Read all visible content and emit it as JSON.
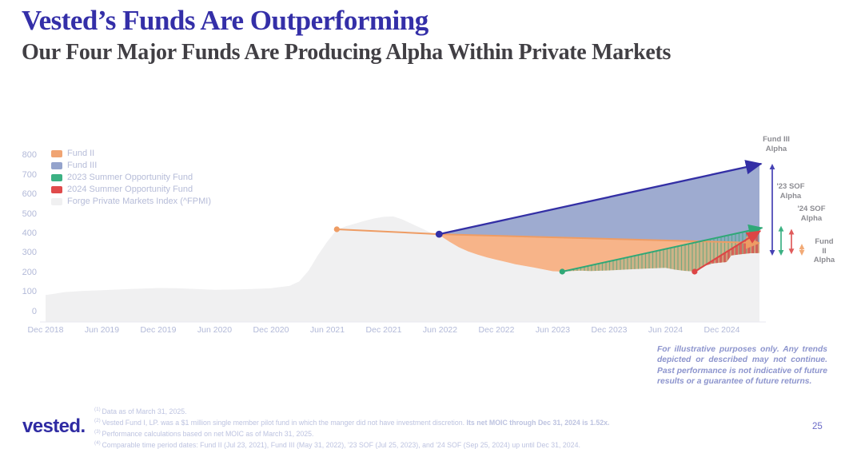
{
  "header": {
    "title": "Vested’s Funds Are Outperforming",
    "subtitle": "Our Four Major Funds Are Producing Alpha Within Private Markets"
  },
  "colors": {
    "title": "#342fa8",
    "subtitle": "#413f44",
    "fund2_orange": "#f0a473",
    "fund3_blue_fill": "#96a4cc",
    "fund3_navy_line": "#332fa5",
    "sof23_green": "#3cb183",
    "sof24_red": "#e04b4b",
    "fpmi_gray": "#f0f0f1",
    "axis_text": "#b2b9d8",
    "alpha_label_gray": "#8c8c92"
  },
  "legend": {
    "items": [
      {
        "label": "Fund II",
        "color": "#f0a473"
      },
      {
        "label": "Fund III",
        "color": "#94a3cc"
      },
      {
        "label": "2023 Summer Opportunity Fund",
        "color": "#3cb183"
      },
      {
        "label": "2024 Summer Opportunity Fund",
        "color": "#e04b4b"
      },
      {
        "label": "Forge Private Markets Index (^FPMI)",
        "color": "#f0f0f1"
      }
    ]
  },
  "chart_data": {
    "type": "area",
    "title": "Vested funds indexed performance vs Forge Private Markets Index (^FPMI)",
    "x_axis": {
      "unit": "months since Dec 2018",
      "ticks": [
        {
          "label": "Dec 2018",
          "m": 0
        },
        {
          "label": "Jun 2019",
          "m": 6
        },
        {
          "label": "Dec 2019",
          "m": 12
        },
        {
          "label": "Jun 2020",
          "m": 18
        },
        {
          "label": "Dec 2020",
          "m": 24
        },
        {
          "label": "Jun 2021",
          "m": 30
        },
        {
          "label": "Dec 2021",
          "m": 36
        },
        {
          "label": "Jun 2022",
          "m": 42
        },
        {
          "label": "Dec 2022",
          "m": 48
        },
        {
          "label": "Jun 2023",
          "m": 54
        },
        {
          "label": "Dec 2023",
          "m": 60
        },
        {
          "label": "Jun 2024",
          "m": 66
        },
        {
          "label": "Dec 2024",
          "m": 72
        }
      ]
    },
    "y_axis": {
      "ticks": [
        800,
        700,
        600,
        500,
        400,
        300,
        200,
        100,
        0
      ],
      "range": [
        0,
        800
      ]
    },
    "series": [
      {
        "id": "fpmi",
        "name": "Forge Private Markets Index (^FPMI)",
        "kind": "index-area",
        "color": "#f0f0f1",
        "points": [
          [
            0,
            85
          ],
          [
            1,
            92
          ],
          [
            2,
            100
          ],
          [
            4,
            106
          ],
          [
            6,
            110
          ],
          [
            9,
            116
          ],
          [
            12,
            121
          ],
          [
            14,
            120
          ],
          [
            16,
            116
          ],
          [
            18,
            112
          ],
          [
            20,
            113
          ],
          [
            22,
            116
          ],
          [
            24,
            120
          ],
          [
            26,
            132
          ],
          [
            27,
            155
          ],
          [
            28,
            210
          ],
          [
            29,
            290
          ],
          [
            30,
            360
          ],
          [
            31,
            420
          ],
          [
            32,
            438
          ],
          [
            33,
            452
          ],
          [
            34,
            466
          ],
          [
            35,
            478
          ],
          [
            36,
            486
          ],
          [
            37,
            488
          ],
          [
            38,
            472
          ],
          [
            39,
            450
          ],
          [
            40,
            428
          ],
          [
            41,
            405
          ],
          [
            41.9,
            393
          ],
          [
            43,
            358
          ],
          [
            44,
            330
          ],
          [
            45,
            308
          ],
          [
            46,
            292
          ],
          [
            47,
            278
          ],
          [
            48,
            266
          ],
          [
            50,
            243
          ],
          [
            52,
            226
          ],
          [
            54,
            207
          ],
          [
            55,
            205
          ],
          [
            56,
            208
          ],
          [
            57,
            210
          ],
          [
            58,
            208
          ],
          [
            60,
            211
          ],
          [
            62,
            216
          ],
          [
            64,
            221
          ],
          [
            66,
            224
          ],
          [
            67,
            215
          ],
          [
            68,
            209
          ],
          [
            69,
            206
          ],
          [
            69.5,
            210
          ],
          [
            70,
            232
          ],
          [
            71,
            247
          ],
          [
            72,
            252
          ],
          [
            72.5,
            254
          ],
          [
            73,
            288
          ],
          [
            74,
            294
          ],
          [
            75,
            299
          ],
          [
            76,
            300
          ]
        ]
      },
      {
        "id": "fund2",
        "name": "Fund II",
        "kind": "line",
        "color": "#f0a473",
        "line_color": "#ee9c64",
        "points": [
          [
            31,
            422
          ],
          [
            41.9,
            397
          ],
          [
            76,
            352
          ]
        ],
        "start_value": 422,
        "end_value": 352
      },
      {
        "id": "fund3",
        "name": "Fund III",
        "kind": "line",
        "color": "#94a3cc",
        "line_color": "#332fa5",
        "points": [
          [
            41.9,
            397
          ],
          [
            76.2,
            758
          ]
        ],
        "start_value": 397,
        "end_value": 758
      },
      {
        "id": "sof23",
        "name": "2023 Summer Opportunity Fund",
        "kind": "line",
        "color": "#3cb183",
        "line_color": "#2fa877",
        "points": [
          [
            55,
            205
          ],
          [
            76.3,
            430
          ]
        ],
        "start_value": 205,
        "end_value": 430
      },
      {
        "id": "sof24",
        "name": "2024 Summer Opportunity Fund",
        "kind": "line",
        "color": "#e04b4b",
        "line_color": "#dd4545",
        "points": [
          [
            69.1,
            205
          ],
          [
            76.1,
            414
          ]
        ],
        "start_value": 205,
        "end_value": 414
      }
    ],
    "fills": [
      {
        "top": "fund3",
        "bottom": "fund2",
        "from": 41.9,
        "to": 76,
        "style": "solid",
        "color": "#96a4cc",
        "opacity": 0.92
      },
      {
        "top": "fund2",
        "bottom": "fpmi",
        "from": 41.9,
        "to": 76,
        "style": "solid",
        "color": "#f7b083",
        "opacity": 0.95
      },
      {
        "top": "sof23",
        "bottom": "fpmi",
        "from": 55,
        "to": 76,
        "style": "hatch",
        "color": "#3cb183",
        "opacity": 0.3
      },
      {
        "top": "sof24",
        "bottom": "fpmi",
        "from": 69.1,
        "to": 76,
        "style": "bars",
        "color": "#e04b4b",
        "opacity": 0.8
      }
    ],
    "annotations": [
      {
        "id": "fund3-alpha",
        "label": "Fund III\nAlpha",
        "color": "#4642b4",
        "x": 966,
        "v_top": 758,
        "v_bottom": 287,
        "dashed": false,
        "label_cx": 971,
        "label_top": 169
      },
      {
        "id": "sof23-alpha",
        "label": "'23 SOF\nAlpha",
        "color": "#3cb183",
        "x": 977,
        "v_top": 440,
        "v_bottom": 287,
        "dashed": false,
        "label_cx": 989,
        "label_top": 228
      },
      {
        "id": "sof24-alpha",
        "label": "'24 SOF\nAlpha",
        "color": "#e05b5b",
        "x": 990,
        "v_top": 424,
        "v_bottom": 294,
        "dashed": false,
        "label_cx": 1015,
        "label_top": 256
      },
      {
        "id": "fund2-alpha",
        "label": "Fund II\nAlpha",
        "color": "#f2aa76",
        "x": 1003,
        "v_top": 348,
        "v_bottom": 287,
        "dashed": true,
        "label_cx": 1031,
        "label_top": 297
      }
    ]
  },
  "disclaimer": "For illustrative purposes only. Any trends depicted or described may not continue. Past performance is not indicative of future results or a guarantee of future returns.",
  "footnotes": [
    {
      "marker": "(1)",
      "text": "Data as of March 31, 2025.",
      "bold": ""
    },
    {
      "marker": "(2)",
      "text": "Vested Fund I, LP. was a $1 million single member pilot fund in which the manger did not have investment discretion. ",
      "bold": "Its net MOIC through Dec 31, 2024 is 1.52x."
    },
    {
      "marker": "(3)",
      "text": "Performance calculations based on net MOIC as of March 31, 2025.",
      "bold": ""
    },
    {
      "marker": "(4)",
      "text": "Comparable time period dates: Fund II (Jul 23, 2021), Fund III (May 31, 2022), '23 SOF (Jul 25, 2023), and '24 SOF (Sep 25, 2024) up until Dec 31, 2024.",
      "bold": ""
    }
  ],
  "footer": {
    "logo": "vested.",
    "page": "25"
  }
}
